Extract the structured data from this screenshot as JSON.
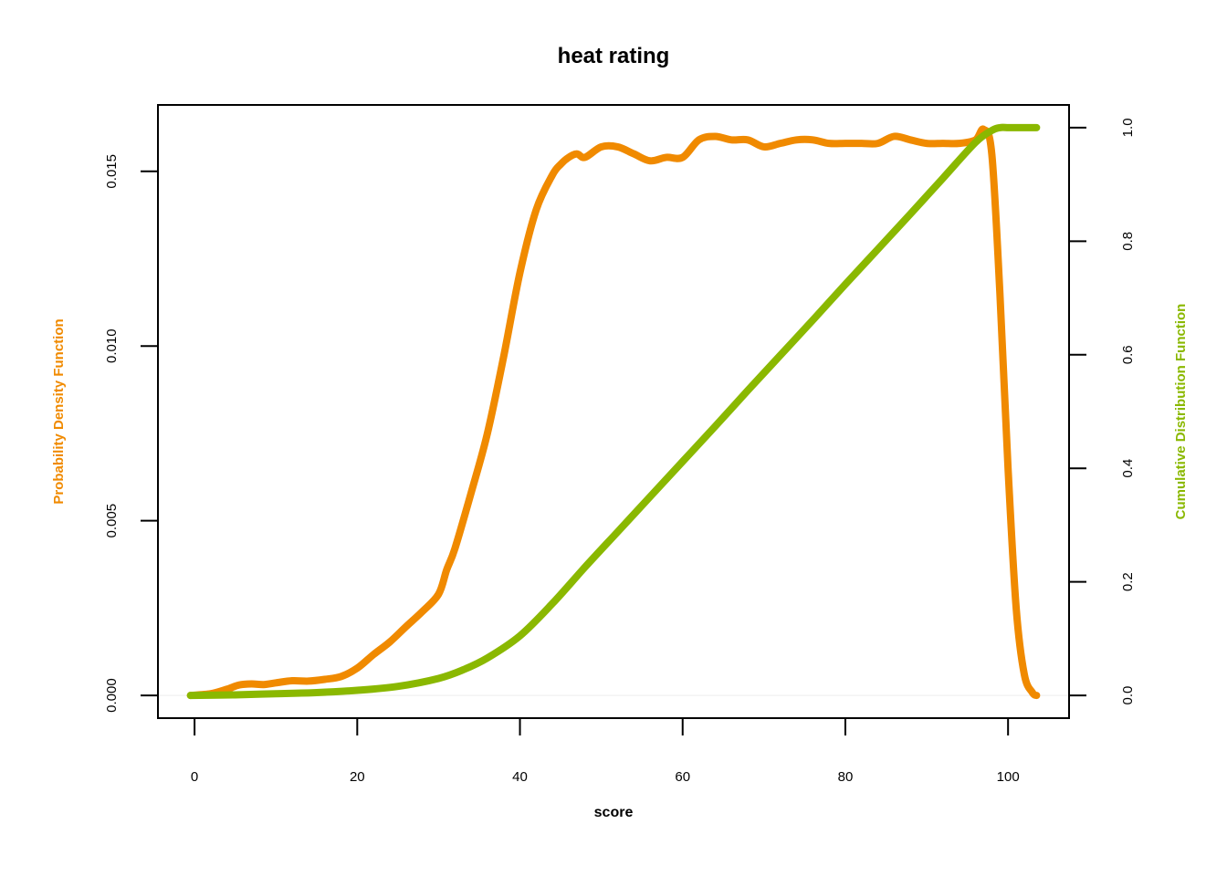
{
  "chart_data": {
    "type": "line",
    "title": "heat rating",
    "xlabel": "score",
    "ylabel_left": "Probability Density Function",
    "ylabel_right": "Cumulative Distribution Function",
    "xlim": [
      -4.5,
      107.5
    ],
    "ylim_left": [
      -0.00065,
      0.0169
    ],
    "ylim_right": [
      -0.04,
      1.04
    ],
    "x_ticks": [
      0,
      20,
      40,
      60,
      80,
      100
    ],
    "y_ticks_left": [
      0.0,
      0.005,
      0.01,
      0.015
    ],
    "y_ticks_left_labels": [
      "0.000",
      "0.005",
      "0.010",
      "0.015"
    ],
    "y_ticks_right": [
      0.0,
      0.2,
      0.4,
      0.6,
      0.8,
      1.0
    ],
    "y_ticks_right_labels": [
      "0.0",
      "0.2",
      "0.4",
      "0.6",
      "0.8",
      "1.0"
    ],
    "legend": "none",
    "grid": false,
    "colors": {
      "pdf": "#f08a00",
      "cdf": "#8ab800",
      "baseline": "#eeeeee"
    },
    "series": [
      {
        "axis": "left",
        "x": [
          -0.5,
          2,
          4,
          5.5,
          7,
          8.5,
          10,
          12,
          14,
          16,
          18,
          20,
          22,
          24,
          26,
          28,
          30,
          31,
          32,
          34,
          36,
          38,
          40,
          42,
          44,
          45,
          46,
          47,
          48,
          50,
          52,
          54,
          56,
          58,
          60,
          62,
          64,
          66,
          68,
          70,
          72,
          74,
          76,
          78,
          80,
          82,
          84,
          86,
          88,
          90,
          92,
          94,
          96,
          97,
          98,
          99,
          100,
          101,
          102,
          103,
          103.5
        ],
        "values": [
          0.0,
          5e-05,
          0.00018,
          0.0003,
          0.00033,
          0.00031,
          0.00036,
          0.00042,
          0.00041,
          0.00046,
          0.00054,
          0.00078,
          0.00117,
          0.00153,
          0.00197,
          0.0024,
          0.0029,
          0.0036,
          0.0042,
          0.0058,
          0.0075,
          0.0097,
          0.0121,
          0.0139,
          0.0149,
          0.0152,
          0.0154,
          0.0155,
          0.0154,
          0.0157,
          0.0157,
          0.0155,
          0.0153,
          0.0154,
          0.0154,
          0.0159,
          0.016,
          0.0159,
          0.0159,
          0.0157,
          0.0158,
          0.0159,
          0.0159,
          0.0158,
          0.0158,
          0.0158,
          0.0158,
          0.016,
          0.0159,
          0.0158,
          0.0158,
          0.0158,
          0.0159,
          0.0162,
          0.0155,
          0.0115,
          0.0065,
          0.0025,
          0.0006,
          8e-05,
          0.0
        ]
      },
      {
        "axis": "right",
        "x": [
          -0.5,
          5,
          10,
          15,
          20,
          25,
          30,
          33,
          36,
          40,
          44,
          48,
          52,
          56,
          60,
          64,
          68,
          72,
          76,
          80,
          84,
          88,
          92,
          96,
          98,
          99,
          100,
          101,
          102,
          103.5
        ],
        "values": [
          0.0,
          0.001,
          0.003,
          0.005,
          0.009,
          0.016,
          0.03,
          0.045,
          0.066,
          0.105,
          0.162,
          0.226,
          0.288,
          0.35,
          0.412,
          0.474,
          0.537,
          0.599,
          0.661,
          0.724,
          0.786,
          0.848,
          0.911,
          0.974,
          0.995,
          1.0,
          1.0,
          1.0,
          1.0,
          1.0
        ]
      }
    ]
  }
}
